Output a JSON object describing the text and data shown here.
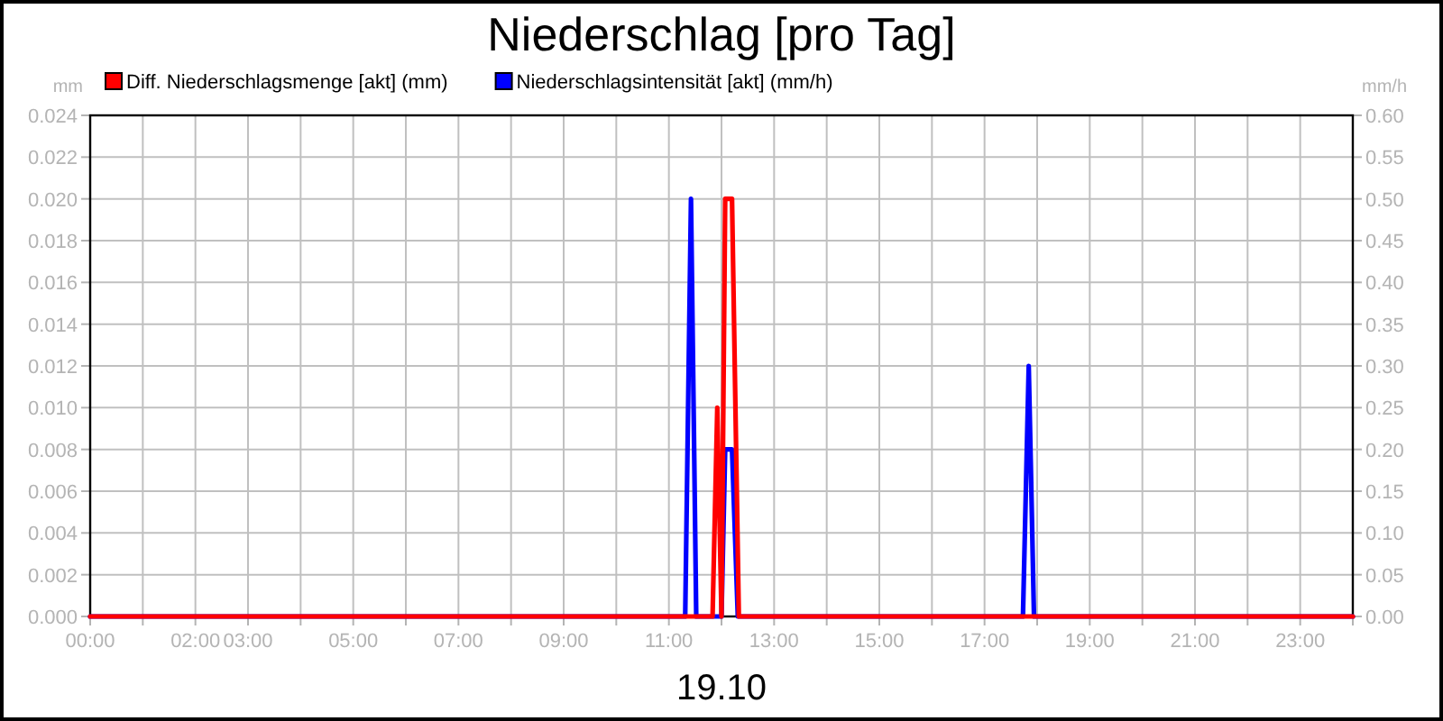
{
  "chart_data": {
    "type": "line",
    "title": "Niederschlag [pro Tag]",
    "xlabel": "19.10",
    "ylabel": "mm",
    "y2label": "mm/h",
    "xlim": [
      0,
      24
    ],
    "xticks": [
      {
        "value": 0,
        "label": "00:00"
      },
      {
        "value": 1,
        "label": null
      },
      {
        "value": 2,
        "label": "02:00"
      },
      {
        "value": 3,
        "label": "03:00"
      },
      {
        "value": 4,
        "label": null
      },
      {
        "value": 5,
        "label": "05:00"
      },
      {
        "value": 6,
        "label": null
      },
      {
        "value": 7,
        "label": "07:00"
      },
      {
        "value": 8,
        "label": null
      },
      {
        "value": 9,
        "label": "09:00"
      },
      {
        "value": 10,
        "label": null
      },
      {
        "value": 11,
        "label": "11:00"
      },
      {
        "value": 12,
        "label": null
      },
      {
        "value": 13,
        "label": "13:00"
      },
      {
        "value": 14,
        "label": null
      },
      {
        "value": 15,
        "label": "15:00"
      },
      {
        "value": 16,
        "label": null
      },
      {
        "value": 17,
        "label": "17:00"
      },
      {
        "value": 18,
        "label": null
      },
      {
        "value": 19,
        "label": "19:00"
      },
      {
        "value": 20,
        "label": null
      },
      {
        "value": 21,
        "label": "21:00"
      },
      {
        "value": 22,
        "label": null
      },
      {
        "value": 23,
        "label": "23:00"
      },
      {
        "value": 24,
        "label": null
      }
    ],
    "ylim": [
      0,
      0.024
    ],
    "yticks": [
      {
        "value": 0,
        "label": "0.000"
      },
      {
        "value": 0.002,
        "label": "0.002"
      },
      {
        "value": 0.004,
        "label": "0.004"
      },
      {
        "value": 0.006,
        "label": "0.006"
      },
      {
        "value": 0.008,
        "label": "0.008"
      },
      {
        "value": 0.01,
        "label": "0.010"
      },
      {
        "value": 0.012,
        "label": "0.012"
      },
      {
        "value": 0.014,
        "label": "0.014"
      },
      {
        "value": 0.016,
        "label": "0.016"
      },
      {
        "value": 0.018,
        "label": "0.018"
      },
      {
        "value": 0.02,
        "label": "0.020"
      },
      {
        "value": 0.022,
        "label": "0.022"
      },
      {
        "value": 0.024,
        "label": "0.024"
      }
    ],
    "y2lim": [
      0,
      0.6
    ],
    "y2ticks": [
      {
        "value": 0,
        "label": "0.00"
      },
      {
        "value": 0.05,
        "label": "0.05"
      },
      {
        "value": 0.1,
        "label": "0.10"
      },
      {
        "value": 0.15,
        "label": "0.15"
      },
      {
        "value": 0.2,
        "label": "0.20"
      },
      {
        "value": 0.25,
        "label": "0.25"
      },
      {
        "value": 0.3,
        "label": "0.30"
      },
      {
        "value": 0.35,
        "label": "0.35"
      },
      {
        "value": 0.4,
        "label": "0.40"
      },
      {
        "value": 0.45,
        "label": "0.45"
      },
      {
        "value": 0.5,
        "label": "0.50"
      },
      {
        "value": 0.55,
        "label": "0.55"
      },
      {
        "value": 0.6,
        "label": "0.60"
      }
    ],
    "grid": true,
    "legend": "top left",
    "series": [
      {
        "name": "Diff. Niederschlagsmenge [akt] (mm)",
        "color": "#ff0000",
        "x": [
          0,
          11.83,
          11.92,
          12.0,
          12.07,
          12.2,
          12.33,
          24
        ],
        "values": [
          0,
          0,
          0.01,
          0,
          0.02,
          0.02,
          0,
          0
        ]
      },
      {
        "name": "Niederschlagsintensität [akt] (mm/h)",
        "color": "#0000ff",
        "axis": "y2",
        "x": [
          0,
          11.31,
          11.42,
          11.52,
          12.0,
          12.07,
          12.2,
          12.31,
          17.73,
          17.84,
          17.94,
          24
        ],
        "values": [
          0,
          0,
          0.5,
          0,
          0,
          0.2,
          0.2,
          0,
          0,
          0.3,
          0,
          0
        ]
      }
    ]
  }
}
